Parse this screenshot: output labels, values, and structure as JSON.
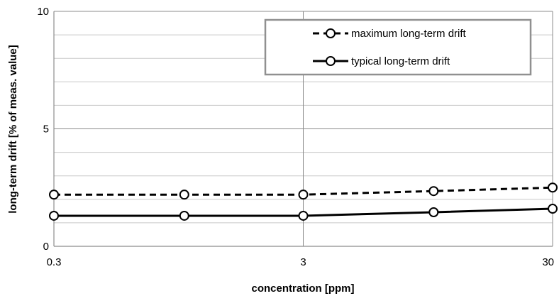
{
  "chart_data": {
    "type": "line",
    "xlabel": "concentration [ppm]",
    "ylabel": "long-term drift [% of meas. value]",
    "x_scale": "log",
    "xlim": [
      0.3,
      30
    ],
    "ylim": [
      0,
      10
    ],
    "x_ticks": [
      0.3,
      3,
      30
    ],
    "x_tick_labels": [
      "0.3",
      "3",
      "30"
    ],
    "y_ticks": [
      0,
      5,
      10
    ],
    "y_tick_labels": [
      "0",
      "5",
      "10"
    ],
    "y_minor_gridlines": [
      1,
      2,
      3,
      4,
      6,
      7,
      8,
      9
    ],
    "grid": true,
    "legend_position": "top-right",
    "series": [
      {
        "name": "maximum long-term drift",
        "line_style": "dashed",
        "marker": "open-circle",
        "color": "#000000",
        "points": [
          {
            "x": 0.3,
            "y": 2.2
          },
          {
            "x": 1,
            "y": 2.2
          },
          {
            "x": 3,
            "y": 2.2
          },
          {
            "x": 10,
            "y": 2.35
          },
          {
            "x": 30,
            "y": 2.5
          }
        ]
      },
      {
        "name": "typical long-term drift",
        "line_style": "solid",
        "marker": "open-circle",
        "color": "#000000",
        "points": [
          {
            "x": 0.3,
            "y": 1.3
          },
          {
            "x": 1,
            "y": 1.3
          },
          {
            "x": 3,
            "y": 1.3
          },
          {
            "x": 10,
            "y": 1.45
          },
          {
            "x": 30,
            "y": 1.6
          }
        ]
      }
    ]
  }
}
